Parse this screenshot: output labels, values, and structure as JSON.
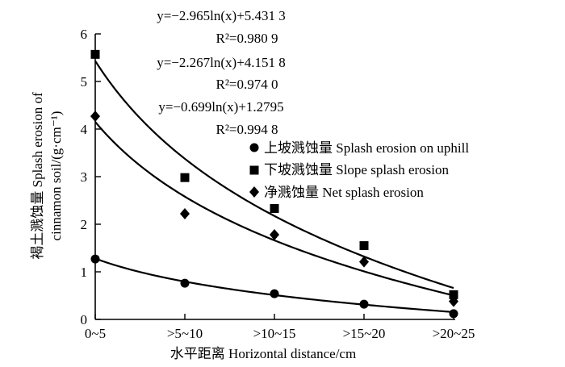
{
  "chart_data": {
    "type": "scatter",
    "categories": [
      "0~5",
      ">5~10",
      ">10~15",
      ">15~20",
      ">20~25"
    ],
    "xlabel": "水平距离 Horizontal distance/cm",
    "ylabel_line1": "褐土溅蚀量 Splash erosion of",
    "ylabel_line2": "cinnamon soil/(g·cm⁻¹)",
    "ylim": [
      0,
      6
    ],
    "yticks": [
      0,
      1,
      2,
      3,
      4,
      5,
      6
    ],
    "grid": false,
    "legend_position": "right, middle",
    "series": [
      {
        "name": "上坡溅蚀量 Splash erosion on uphill",
        "marker": "circle",
        "values": [
          1.27,
          0.76,
          0.54,
          0.32,
          0.12
        ],
        "fit": {
          "a": -0.699,
          "b": 1.2795
        }
      },
      {
        "name": "下坡溅蚀量 Slope splash erosion",
        "marker": "square",
        "values": [
          5.57,
          2.98,
          2.33,
          1.55,
          0.52
        ],
        "fit": {
          "a": -2.965,
          "b": 5.4313
        }
      },
      {
        "name": "净溅蚀量 Net splash erosion",
        "marker": "diamond",
        "values": [
          4.27,
          2.22,
          1.78,
          1.21,
          0.38
        ],
        "fit": {
          "a": -2.267,
          "b": 4.1518
        }
      }
    ],
    "equations": [
      {
        "eq": "y=−2.965ln(x)+5.431 3",
        "r2": "R²=0.980 9"
      },
      {
        "eq": "y=−2.267ln(x)+4.151 8",
        "r2": "R²=0.974 0"
      },
      {
        "eq": "y=−0.699ln(x)+1.2795",
        "r2": "R²=0.994 8"
      }
    ]
  }
}
